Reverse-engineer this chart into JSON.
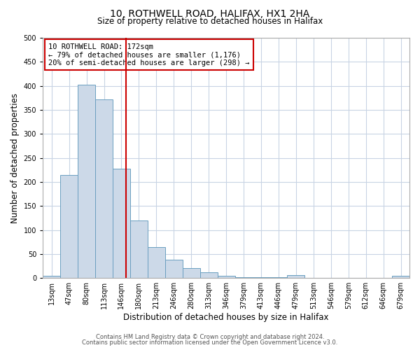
{
  "title": "10, ROTHWELL ROAD, HALIFAX, HX1 2HA",
  "subtitle": "Size of property relative to detached houses in Halifax",
  "xlabel": "Distribution of detached houses by size in Halifax",
  "ylabel": "Number of detached properties",
  "bin_labels": [
    "13sqm",
    "47sqm",
    "80sqm",
    "113sqm",
    "146sqm",
    "180sqm",
    "213sqm",
    "246sqm",
    "280sqm",
    "313sqm",
    "346sqm",
    "379sqm",
    "413sqm",
    "446sqm",
    "479sqm",
    "513sqm",
    "546sqm",
    "579sqm",
    "612sqm",
    "646sqm",
    "679sqm"
  ],
  "bar_values": [
    5,
    215,
    403,
    372,
    228,
    120,
    65,
    38,
    20,
    12,
    5,
    2,
    2,
    2,
    6,
    1,
    1,
    1,
    1,
    1,
    4
  ],
  "bar_color": "#ccd9e8",
  "bar_edge_color": "#6a9fc0",
  "vline_color": "#cc0000",
  "annotation_title": "10 ROTHWELL ROAD: 172sqm",
  "annotation_line1": "← 79% of detached houses are smaller (1,176)",
  "annotation_line2": "20% of semi-detached houses are larger (298) →",
  "annotation_box_color": "#cc0000",
  "annotation_text_color": "#000000",
  "ylim": [
    0,
    500
  ],
  "yticks": [
    0,
    50,
    100,
    150,
    200,
    250,
    300,
    350,
    400,
    450,
    500
  ],
  "footer1": "Contains HM Land Registry data © Crown copyright and database right 2024.",
  "footer2": "Contains public sector information licensed under the Open Government Licence v3.0.",
  "bg_color": "#ffffff",
  "grid_color": "#c8d4e4",
  "title_fontsize": 10,
  "subtitle_fontsize": 8.5,
  "ylabel_fontsize": 8.5,
  "xlabel_fontsize": 8.5,
  "tick_fontsize": 7,
  "annotation_fontsize": 7.5,
  "footer_fontsize": 6
}
